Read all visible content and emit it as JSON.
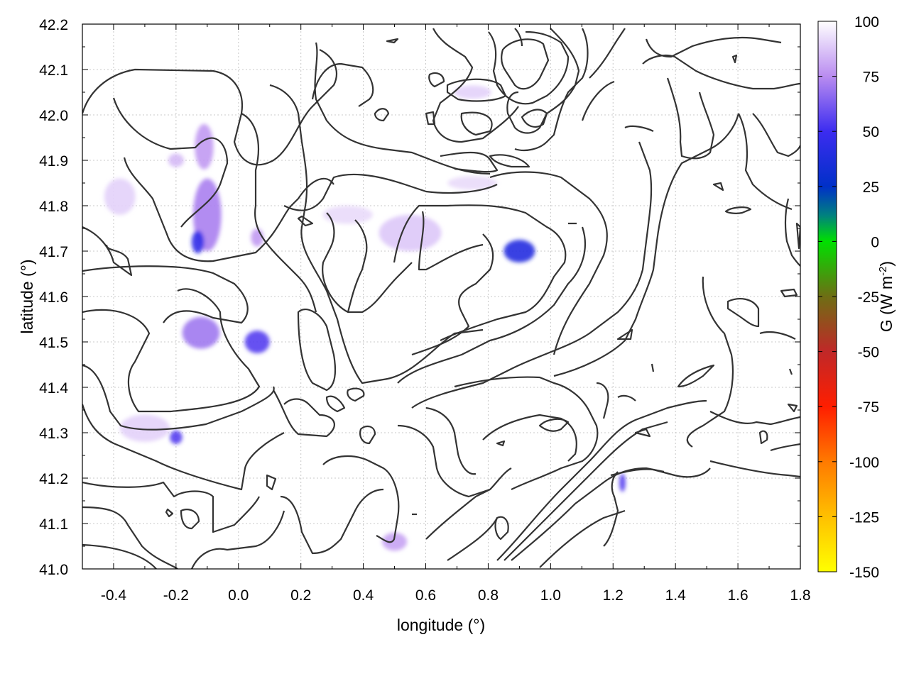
{
  "chart_data": {
    "type": "heatmap",
    "title": "",
    "xlabel": "longitude (°)",
    "ylabel": "latitude (°)",
    "xlim": [
      -0.5,
      1.8
    ],
    "ylim": [
      41.0,
      42.2
    ],
    "x_ticks": [
      "-0.4",
      "-0.2",
      "0.0",
      "0.2",
      "0.4",
      "0.6",
      "0.8",
      "1.0",
      "1.2",
      "1.4",
      "1.6",
      "1.8"
    ],
    "y_ticks": [
      "41.0",
      "41.1",
      "41.2",
      "41.3",
      "41.4",
      "41.5",
      "41.6",
      "41.7",
      "41.8",
      "41.9",
      "42.0",
      "42.1",
      "42.2"
    ],
    "grid": true,
    "colorbar": {
      "label": "G (W m-2)",
      "label_main": "G (W m",
      "label_sup": "-2",
      "label_end": ")",
      "range": [
        -150,
        100
      ],
      "ticks": [
        "100",
        "75",
        "50",
        "25",
        "0",
        "-25",
        "-50",
        "-75",
        "-100",
        "-125",
        "-150"
      ],
      "stops": [
        {
          "value": 100,
          "color": "#ffffff"
        },
        {
          "value": 75,
          "color": "#b98cf0"
        },
        {
          "value": 50,
          "color": "#3c2cf0"
        },
        {
          "value": 25,
          "color": "#0030c8"
        },
        {
          "value": 12,
          "color": "#008080"
        },
        {
          "value": 0,
          "color": "#00e000"
        },
        {
          "value": -25,
          "color": "#6e6e14"
        },
        {
          "value": -50,
          "color": "#c02828"
        },
        {
          "value": -75,
          "color": "#ff1e00"
        },
        {
          "value": -100,
          "color": "#ff7a00"
        },
        {
          "value": -125,
          "color": "#ffc000"
        },
        {
          "value": -150,
          "color": "#ffff00"
        }
      ]
    },
    "colors": {
      "contour": "#333333",
      "blob_light": "#c8a8f0",
      "blob_mid": "#a07ae8",
      "blob_dark": "#3c28e6"
    },
    "field_patches": [
      {
        "lon": -0.1,
        "lat": 41.78,
        "rx": 0.045,
        "ry": 0.08,
        "g": 72
      },
      {
        "lon": -0.13,
        "lat": 41.72,
        "rx": 0.02,
        "ry": 0.025,
        "g": 45
      },
      {
        "lon": -0.11,
        "lat": 41.93,
        "rx": 0.03,
        "ry": 0.05,
        "g": 78
      },
      {
        "lon": -0.12,
        "lat": 41.52,
        "rx": 0.06,
        "ry": 0.035,
        "g": 70
      },
      {
        "lon": 0.06,
        "lat": 41.5,
        "rx": 0.04,
        "ry": 0.025,
        "g": 55
      },
      {
        "lon": 0.06,
        "lat": 41.73,
        "rx": 0.02,
        "ry": 0.02,
        "g": 78
      },
      {
        "lon": 0.9,
        "lat": 41.7,
        "rx": 0.05,
        "ry": 0.025,
        "g": 40
      },
      {
        "lon": -0.2,
        "lat": 41.29,
        "rx": 0.02,
        "ry": 0.015,
        "g": 55
      },
      {
        "lon": 0.5,
        "lat": 41.06,
        "rx": 0.04,
        "ry": 0.02,
        "g": 80
      },
      {
        "lon": 1.23,
        "lat": 41.19,
        "rx": 0.01,
        "ry": 0.02,
        "g": 55
      },
      {
        "lon": -0.2,
        "lat": 41.9,
        "rx": 0.025,
        "ry": 0.015,
        "g": 85
      },
      {
        "lon": 0.55,
        "lat": 41.74,
        "rx": 0.1,
        "ry": 0.04,
        "g": 88
      },
      {
        "lon": 0.35,
        "lat": 41.78,
        "rx": 0.08,
        "ry": 0.02,
        "g": 92
      },
      {
        "lon": 0.75,
        "lat": 41.85,
        "rx": 0.08,
        "ry": 0.015,
        "g": 92
      },
      {
        "lon": -0.3,
        "lat": 41.31,
        "rx": 0.08,
        "ry": 0.03,
        "g": 90
      },
      {
        "lon": -0.38,
        "lat": 41.82,
        "rx": 0.05,
        "ry": 0.04,
        "g": 90
      },
      {
        "lon": 0.75,
        "lat": 42.05,
        "rx": 0.06,
        "ry": 0.015,
        "g": 90
      }
    ]
  }
}
